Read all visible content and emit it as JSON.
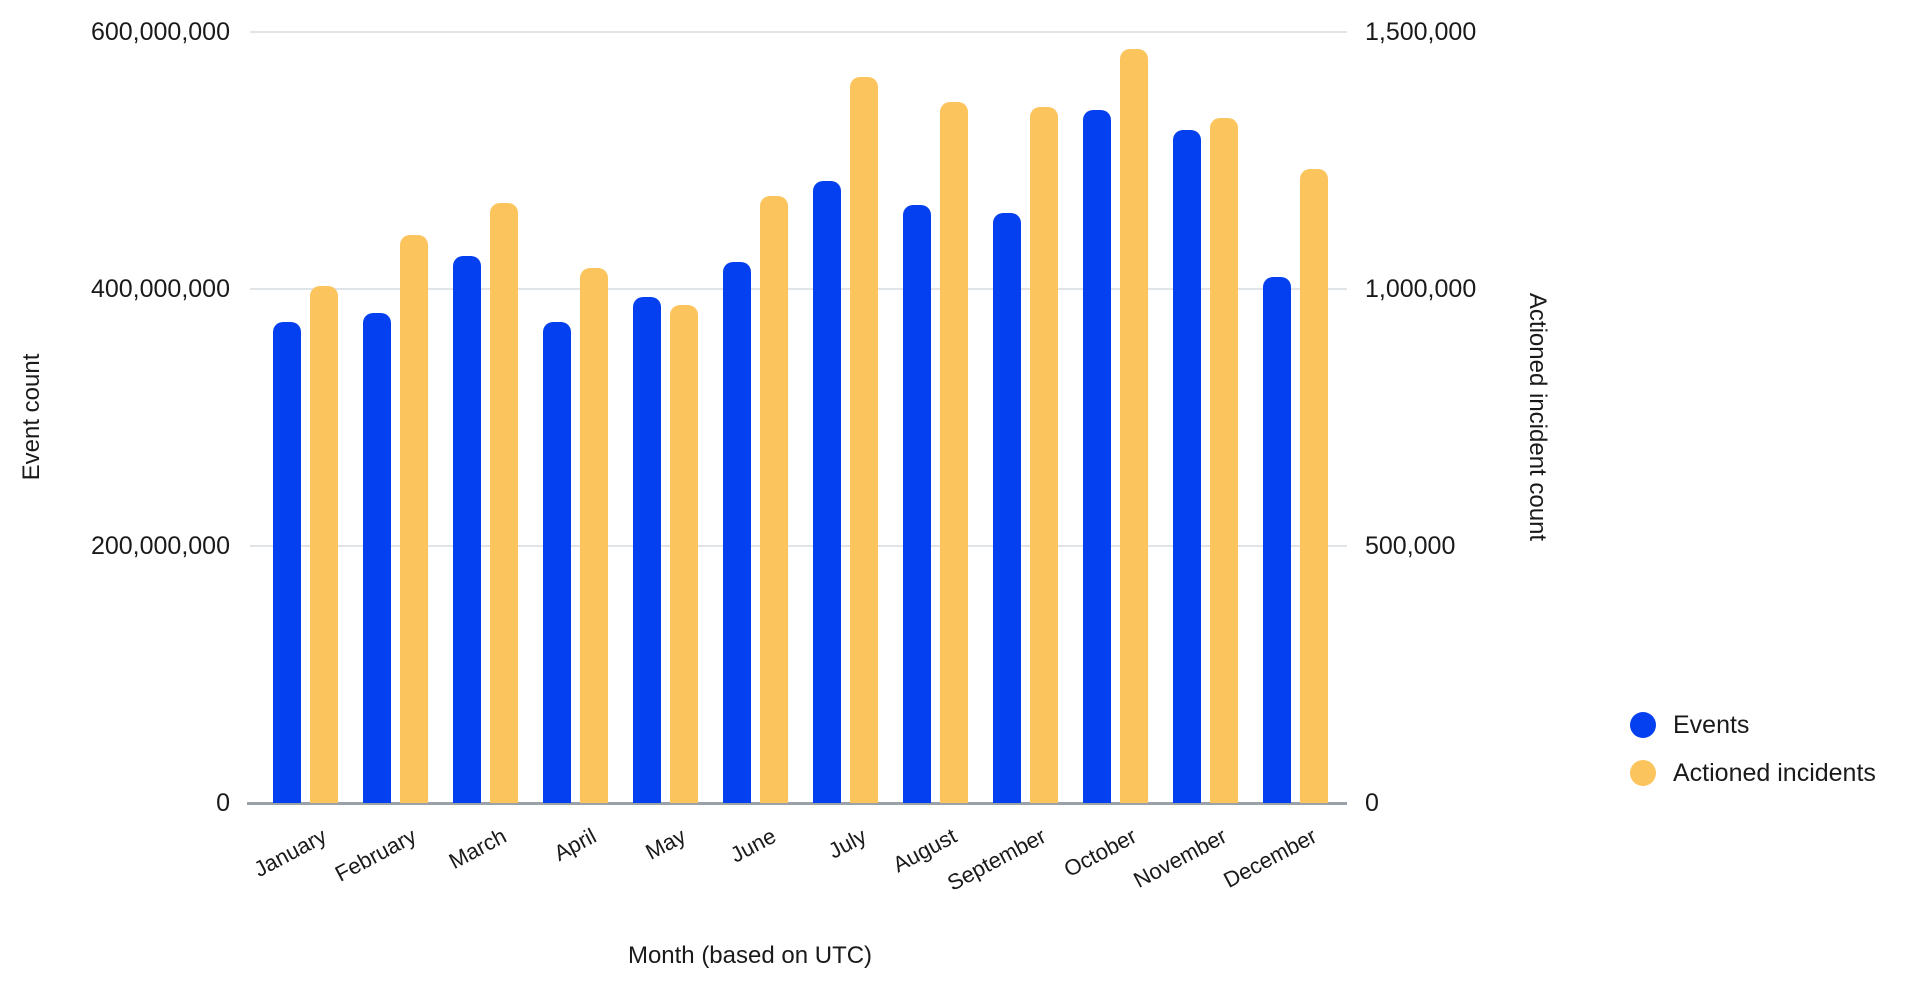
{
  "chart_data": {
    "type": "bar",
    "title": "",
    "xlabel": "Month (based on UTC)",
    "ylabel_left": "Event count",
    "ylabel_right": "Actioned incident count",
    "grid": true,
    "legend_position": "right",
    "categories": [
      "January",
      "February",
      "March",
      "April",
      "May",
      "June",
      "July",
      "August",
      "September",
      "October",
      "November",
      "December"
    ],
    "series": [
      {
        "name": "Events",
        "axis": "left",
        "color": "#0540f0",
        "values": [
          374000000,
          381000000,
          426000000,
          374000000,
          394000000,
          421000000,
          484000000,
          465000000,
          459000000,
          539000000,
          524000000,
          409000000
        ]
      },
      {
        "name": "Actioned incidents",
        "axis": "right",
        "color": "#fcc45c",
        "values": [
          1006000,
          1105000,
          1167000,
          1041000,
          969000,
          1181000,
          1412000,
          1364000,
          1354000,
          1467000,
          1333000,
          1233000
        ]
      }
    ],
    "left_axis": {
      "min": 0,
      "max": 600000000,
      "tick_values": [
        0,
        200000000,
        400000000,
        600000000
      ],
      "tick_labels": [
        "0",
        "200,000,000",
        "400,000,000",
        "600,000,000"
      ]
    },
    "right_axis": {
      "min": 0,
      "max": 1500000,
      "tick_values": [
        0,
        500000,
        1000000,
        1500000
      ],
      "tick_labels": [
        "0",
        "500,000",
        "1,000,000",
        "1,500,000"
      ]
    }
  },
  "legend": {
    "items": [
      {
        "label": "Events",
        "color": "#0540f0"
      },
      {
        "label": "Actioned incidents",
        "color": "#fcc45c"
      }
    ]
  },
  "colors": {
    "events_blue": "#0540f0",
    "incidents_yellow": "#fcc45c",
    "gridline": "#e2e5e8",
    "axis_line": "#9aa1a8",
    "text": "#1a1a1a"
  }
}
